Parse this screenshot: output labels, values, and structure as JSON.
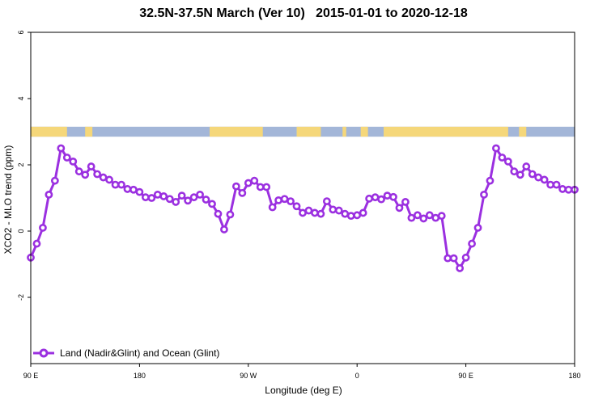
{
  "chart_data": {
    "type": "line",
    "title": "32.5N-37.5N March (Ver 10)   2015-01-01 to 2020-12-18",
    "xlabel": "Longitude (deg E)",
    "ylabel": "XCO2 - MLO trend (ppm)",
    "xlim": [
      90,
      540
    ],
    "ylim": [
      -4,
      6
    ],
    "x_ticks": [
      {
        "value": 90,
        "label": "90 E"
      },
      {
        "value": 180,
        "label": "180"
      },
      {
        "value": 270,
        "label": "90 W"
      },
      {
        "value": 360,
        "label": "0"
      },
      {
        "value": 450,
        "label": "90 E"
      },
      {
        "value": 540,
        "label": "180"
      }
    ],
    "y_ticks": [
      {
        "value": -2,
        "label": "-2"
      },
      {
        "value": 0,
        "label": "0"
      },
      {
        "value": 2,
        "label": "2"
      },
      {
        "value": 4,
        "label": "4"
      },
      {
        "value": 6,
        "label": "6"
      }
    ],
    "grid": false,
    "legend_position": "bottom-left",
    "colors": {
      "series": "#9b30e0",
      "land": "#f5d77a",
      "ocean": "#a3b6d8"
    },
    "land_ocean_strip": {
      "y_range": [
        2.85,
        3.15
      ],
      "land_segments": [
        [
          90,
          120
        ],
        [
          135,
          141
        ],
        [
          238,
          282
        ],
        [
          310,
          330
        ],
        [
          348,
          351
        ],
        [
          363,
          369
        ],
        [
          382,
          485
        ],
        [
          494,
          500
        ]
      ]
    },
    "series": [
      {
        "name": "Land (Nadir&Glint) and Ocean (Glint)",
        "x": [
          90,
          95,
          100,
          105,
          110,
          115,
          120,
          125,
          130,
          135,
          140,
          145,
          150,
          155,
          160,
          165,
          170,
          175,
          180,
          185,
          190,
          195,
          200,
          205,
          210,
          215,
          220,
          225,
          230,
          235,
          240,
          245,
          250,
          255,
          260,
          265,
          270,
          275,
          280,
          285,
          290,
          295,
          300,
          305,
          310,
          315,
          320,
          325,
          330,
          335,
          340,
          345,
          350,
          355,
          360,
          365,
          370,
          375,
          380,
          385,
          390,
          395,
          400,
          405,
          410,
          415,
          420,
          425,
          430,
          435,
          440,
          445,
          450,
          455,
          460,
          465,
          470,
          475,
          480,
          485,
          490,
          495,
          500,
          505,
          510,
          515,
          520,
          525,
          530,
          535,
          540
        ],
        "y": [
          -0.8,
          -0.38,
          0.1,
          1.1,
          1.52,
          2.5,
          2.22,
          2.1,
          1.8,
          1.7,
          1.95,
          1.72,
          1.62,
          1.55,
          1.4,
          1.4,
          1.27,
          1.25,
          1.18,
          1.02,
          1.0,
          1.1,
          1.05,
          0.97,
          0.88,
          1.07,
          0.92,
          1.02,
          1.1,
          0.95,
          0.82,
          0.52,
          0.05,
          0.5,
          1.35,
          1.15,
          1.45,
          1.52,
          1.33,
          1.33,
          0.72,
          0.93,
          0.97,
          0.9,
          0.75,
          0.55,
          0.62,
          0.55,
          0.52,
          0.9,
          0.65,
          0.62,
          0.52,
          0.46,
          0.48,
          0.55,
          0.98,
          1.02,
          0.96,
          1.07,
          1.03,
          0.7,
          0.88,
          0.4,
          0.48,
          0.38,
          0.48,
          0.4,
          0.46,
          -0.82,
          -0.82,
          -1.12,
          -0.8,
          -0.38,
          0.1,
          1.1,
          1.52,
          2.5,
          2.22,
          2.1,
          1.8,
          1.7,
          1.95,
          1.72,
          1.62,
          1.55,
          1.4,
          1.4,
          1.27,
          1.25,
          1.25
        ]
      }
    ]
  }
}
